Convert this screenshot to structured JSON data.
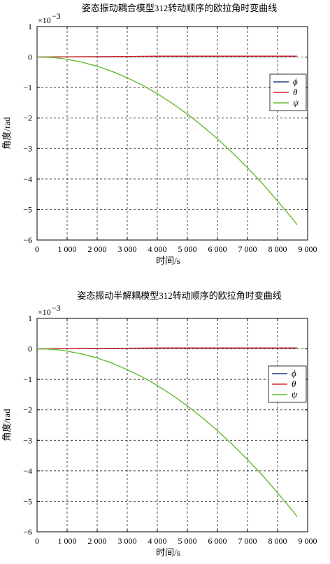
{
  "chart_data": [
    {
      "type": "line",
      "title": "姿态振动耦合模型312转动顺序的欧拉角时变曲线",
      "xlabel": "时间/s",
      "ylabel": "角度/rad",
      "y_multiplier": "×10",
      "y_multiplier_exp": "−3",
      "xlim": [
        0,
        9000
      ],
      "ylim": [
        -6,
        1
      ],
      "xticks": [
        0,
        1000,
        2000,
        3000,
        4000,
        5000,
        6000,
        7000,
        8000,
        9000
      ],
      "xtick_labels": [
        "0",
        "1 000",
        "2 000",
        "3 000",
        "4 000",
        "5 000",
        "6 000",
        "7 000",
        "8 000",
        "9 000"
      ],
      "yticks": [
        1,
        0,
        -1,
        -2,
        -3,
        -4,
        -5,
        -6
      ],
      "ytick_labels": [
        "1",
        "0",
        "−1",
        "−2",
        "−3",
        "−4",
        "−5",
        "−6"
      ],
      "grid": true,
      "legend": "right",
      "series": [
        {
          "name": "ϕ",
          "color": "#1f3f7f",
          "x": [
            0,
            1000,
            2000,
            3000,
            4000,
            5000,
            6000,
            7000,
            8000,
            8650
          ],
          "values": [
            0,
            0.005,
            0.01,
            0.015,
            0.02,
            0.02,
            0.02,
            0.02,
            0.02,
            0.02
          ]
        },
        {
          "name": "θ",
          "color": "#d62728",
          "x": [
            0,
            1000,
            2000,
            3000,
            4000,
            5000,
            6000,
            7000,
            8000,
            8650
          ],
          "values": [
            0,
            0.01,
            0.015,
            0.02,
            0.03,
            0.03,
            0.03,
            0.03,
            0.03,
            0.03
          ]
        },
        {
          "name": "ψ",
          "color": "#66bb33",
          "x": [
            0,
            200,
            400,
            600,
            800,
            1000,
            1500,
            2000,
            2500,
            3000,
            3500,
            4000,
            4500,
            5000,
            5500,
            6000,
            6500,
            7000,
            7500,
            8000,
            8500,
            8650
          ],
          "values": [
            0,
            -0.002,
            -0.008,
            -0.02,
            -0.045,
            -0.075,
            -0.17,
            -0.3,
            -0.47,
            -0.68,
            -0.92,
            -1.2,
            -1.52,
            -1.87,
            -2.26,
            -2.68,
            -3.14,
            -3.63,
            -4.15,
            -4.72,
            -5.31,
            -5.5
          ]
        }
      ]
    },
    {
      "type": "line",
      "title": "姿态振动半解耦模型312转动顺序的欧拉角时变曲线",
      "xlabel": "时间/s",
      "ylabel": "角度/rad",
      "y_multiplier": "×10",
      "y_multiplier_exp": "−3",
      "xlim": [
        0,
        9000
      ],
      "ylim": [
        -6,
        1
      ],
      "xticks": [
        0,
        1000,
        2000,
        3000,
        4000,
        5000,
        6000,
        7000,
        8000,
        9000
      ],
      "xtick_labels": [
        "0",
        "1 000",
        "2 000",
        "3 000",
        "4 000",
        "5 000",
        "6 000",
        "7 000",
        "8 000",
        "9 000"
      ],
      "yticks": [
        1,
        0,
        -1,
        -2,
        -3,
        -4,
        -5,
        -6
      ],
      "ytick_labels": [
        "1",
        "0",
        "−1",
        "−2",
        "−3",
        "−4",
        "−5",
        "−6"
      ],
      "grid": true,
      "legend": "right",
      "series": [
        {
          "name": "ϕ",
          "color": "#1f3f7f",
          "x": [
            0,
            1000,
            2000,
            3000,
            4000,
            5000,
            6000,
            7000,
            8000,
            8650
          ],
          "values": [
            0,
            0.005,
            0.01,
            0.015,
            0.02,
            0.02,
            0.02,
            0.02,
            0.02,
            0.02
          ]
        },
        {
          "name": "θ",
          "color": "#d62728",
          "x": [
            0,
            1000,
            2000,
            3000,
            4000,
            5000,
            6000,
            7000,
            8000,
            8650
          ],
          "values": [
            0,
            0.01,
            0.015,
            0.02,
            0.03,
            0.03,
            0.03,
            0.03,
            0.03,
            0.03
          ]
        },
        {
          "name": "ψ",
          "color": "#66bb33",
          "x": [
            0,
            200,
            400,
            600,
            800,
            1000,
            1500,
            2000,
            2500,
            3000,
            3500,
            4000,
            4500,
            5000,
            5500,
            6000,
            6500,
            7000,
            7500,
            8000,
            8500,
            8650
          ],
          "values": [
            0,
            -0.002,
            -0.008,
            -0.02,
            -0.045,
            -0.075,
            -0.17,
            -0.3,
            -0.47,
            -0.68,
            -0.92,
            -1.2,
            -1.52,
            -1.87,
            -2.26,
            -2.68,
            -3.14,
            -3.63,
            -4.15,
            -4.72,
            -5.31,
            -5.5
          ]
        }
      ]
    }
  ]
}
